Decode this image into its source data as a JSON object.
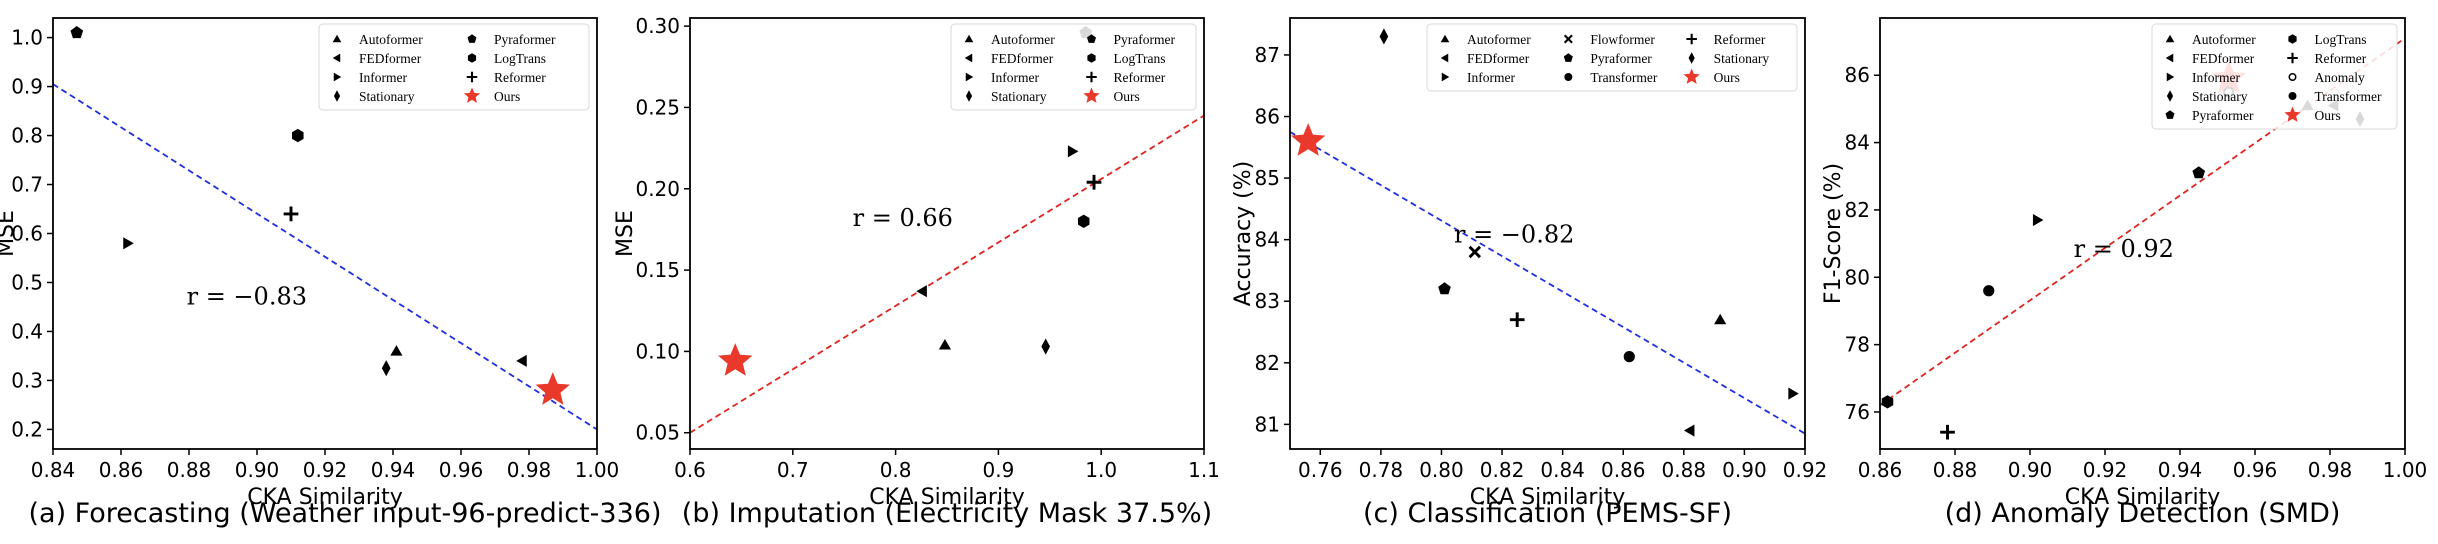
{
  "chart_data": [
    {
      "type": "scatter",
      "caption": "(a) Forecasting (Weather input-96-predict-336)",
      "xlabel": "CKA Similarity",
      "ylabel": "MSE",
      "xlim": [
        0.84,
        1.0
      ],
      "ylim": [
        0.16,
        1.04
      ],
      "xticks": [
        "0.84",
        "0.86",
        "0.88",
        "0.90",
        "0.92",
        "0.94",
        "0.96",
        "0.98",
        "1.00"
      ],
      "xtick_values": [
        0.84,
        0.86,
        0.88,
        0.9,
        0.92,
        0.94,
        0.96,
        0.98,
        1.0
      ],
      "yticks": [
        "0.2",
        "0.3",
        "0.4",
        "0.5",
        "0.6",
        "0.7",
        "0.8",
        "0.9",
        "1.0"
      ],
      "ytick_values": [
        0.2,
        0.3,
        0.4,
        0.5,
        0.6,
        0.7,
        0.8,
        0.9,
        1.0
      ],
      "legend_ncol": 2,
      "legend_width": 270,
      "legend": [
        {
          "label": "Autoformer",
          "marker": "triangle-up"
        },
        {
          "label": "FEDformer",
          "marker": "triangle-left"
        },
        {
          "label": "Informer",
          "marker": "triangle-right"
        },
        {
          "label": "Stationary",
          "marker": "diamond"
        },
        {
          "label": "Pyraformer",
          "marker": "pentagon"
        },
        {
          "label": "LogTrans",
          "marker": "hexagon"
        },
        {
          "label": "Reformer",
          "marker": "plus"
        },
        {
          "label": "Ours",
          "marker": "star"
        }
      ],
      "points": [
        {
          "model": "Pyraformer",
          "marker": "pentagon",
          "x": 0.847,
          "y": 1.01
        },
        {
          "model": "LogTrans",
          "marker": "hexagon",
          "x": 0.912,
          "y": 0.8
        },
        {
          "model": "Informer",
          "marker": "triangle-right",
          "x": 0.862,
          "y": 0.58
        },
        {
          "model": "Reformer",
          "marker": "plus",
          "x": 0.91,
          "y": 0.64
        },
        {
          "model": "Autoformer",
          "marker": "triangle-up",
          "x": 0.941,
          "y": 0.36
        },
        {
          "model": "Stationary",
          "marker": "diamond",
          "x": 0.938,
          "y": 0.325
        },
        {
          "model": "FEDformer",
          "marker": "triangle-left",
          "x": 0.978,
          "y": 0.34
        },
        {
          "model": "Ours",
          "marker": "star",
          "x": 0.987,
          "y": 0.28
        }
      ],
      "fit_line": {
        "color": "#1f2fe0",
        "x": [
          0.84,
          1.0
        ],
        "y": [
          0.905,
          0.2
        ]
      },
      "annotation": {
        "text": "r = −0.83",
        "x": 0.897,
        "y": 0.455
      }
    },
    {
      "type": "scatter",
      "caption": "(b) Imputation (Electricity Mask 37.5%)",
      "xlabel": "CKA Similarity",
      "ylabel": "MSE",
      "xlim": [
        0.6,
        1.1
      ],
      "ylim": [
        0.04,
        0.305
      ],
      "xticks": [
        "0.6",
        "0.7",
        "0.8",
        "0.9",
        "1.0",
        "1.1"
      ],
      "xtick_values": [
        0.6,
        0.7,
        0.8,
        0.9,
        1.0,
        1.1
      ],
      "yticks": [
        "0.05",
        "0.10",
        "0.15",
        "0.20",
        "0.25",
        "0.30"
      ],
      "ytick_values": [
        0.05,
        0.1,
        0.15,
        0.2,
        0.25,
        0.3
      ],
      "legend_ncol": 2,
      "legend_width": 245,
      "legend": [
        {
          "label": "Autoformer",
          "marker": "triangle-up"
        },
        {
          "label": "FEDformer",
          "marker": "triangle-left"
        },
        {
          "label": "Informer",
          "marker": "triangle-right"
        },
        {
          "label": "Stationary",
          "marker": "diamond"
        },
        {
          "label": "Pyraformer",
          "marker": "pentagon"
        },
        {
          "label": "LogTrans",
          "marker": "hexagon"
        },
        {
          "label": "Reformer",
          "marker": "plus"
        },
        {
          "label": "Ours",
          "marker": "star"
        }
      ],
      "points": [
        {
          "model": "Pyraformer",
          "marker": "pentagon",
          "x": 0.985,
          "y": 0.296
        },
        {
          "model": "Informer",
          "marker": "triangle-right",
          "x": 0.972,
          "y": 0.223
        },
        {
          "model": "Reformer",
          "marker": "plus",
          "x": 0.993,
          "y": 0.204
        },
        {
          "model": "LogTrans",
          "marker": "hexagon",
          "x": 0.983,
          "y": 0.18
        },
        {
          "model": "FEDformer",
          "marker": "triangle-left",
          "x": 0.826,
          "y": 0.137
        },
        {
          "model": "Autoformer",
          "marker": "triangle-up",
          "x": 0.848,
          "y": 0.104
        },
        {
          "model": "Stationary",
          "marker": "diamond",
          "x": 0.946,
          "y": 0.103
        },
        {
          "model": "Ours",
          "marker": "star",
          "x": 0.644,
          "y": 0.094
        }
      ],
      "fit_line": {
        "color": "#e0251f",
        "x": [
          0.6,
          1.1
        ],
        "y": [
          0.05,
          0.245
        ]
      },
      "annotation": {
        "text": "r = 0.66",
        "x": 0.807,
        "y": 0.177
      }
    },
    {
      "type": "scatter",
      "caption": "(c) Classification (PEMS-SF)",
      "xlabel": "CKA Similarity",
      "ylabel": "Accuracy (%)",
      "xlim": [
        0.75,
        0.92
      ],
      "ylim": [
        80.6,
        87.6
      ],
      "xticks": [
        "0.76",
        "0.78",
        "0.80",
        "0.82",
        "0.84",
        "0.86",
        "0.88",
        "0.90",
        "0.92"
      ],
      "xtick_values": [
        0.76,
        0.78,
        0.8,
        0.82,
        0.84,
        0.86,
        0.88,
        0.9,
        0.92
      ],
      "yticks": [
        "81",
        "82",
        "83",
        "84",
        "85",
        "86",
        "87"
      ],
      "ytick_values": [
        81,
        82,
        83,
        84,
        85,
        86,
        87
      ],
      "legend_ncol": 3,
      "legend_width": 370,
      "legend": [
        {
          "label": "Autoformer",
          "marker": "triangle-up"
        },
        {
          "label": "FEDformer",
          "marker": "triangle-left"
        },
        {
          "label": "Informer",
          "marker": "triangle-right"
        },
        {
          "label": "Flowformer",
          "marker": "cross"
        },
        {
          "label": "Pyraformer",
          "marker": "pentagon"
        },
        {
          "label": "Transformer",
          "marker": "circle"
        },
        {
          "label": "Reformer",
          "marker": "plus"
        },
        {
          "label": "Stationary",
          "marker": "diamond"
        },
        {
          "label": "Ours",
          "marker": "star"
        }
      ],
      "points": [
        {
          "model": "Stationary",
          "marker": "diamond",
          "x": 0.781,
          "y": 87.3
        },
        {
          "model": "Ours",
          "marker": "star",
          "x": 0.756,
          "y": 85.6
        },
        {
          "model": "Flowformer",
          "marker": "cross",
          "x": 0.811,
          "y": 83.8
        },
        {
          "model": "Pyraformer",
          "marker": "pentagon",
          "x": 0.801,
          "y": 83.2
        },
        {
          "model": "Reformer",
          "marker": "plus",
          "x": 0.825,
          "y": 82.7
        },
        {
          "model": "Transformer",
          "marker": "circle",
          "x": 0.862,
          "y": 82.1
        },
        {
          "model": "Autoformer",
          "marker": "triangle-up",
          "x": 0.892,
          "y": 82.7
        },
        {
          "model": "FEDformer",
          "marker": "triangle-left",
          "x": 0.882,
          "y": 80.9
        },
        {
          "model": "Informer",
          "marker": "triangle-right",
          "x": 0.916,
          "y": 81.5
        }
      ],
      "fit_line": {
        "color": "#1f2fe0",
        "x": [
          0.75,
          0.92
        ],
        "y": [
          85.75,
          80.85
        ]
      },
      "annotation": {
        "text": "r = −0.82",
        "x": 0.824,
        "y": 83.95
      }
    },
    {
      "type": "scatter",
      "caption": "(d) Anomaly Detection (SMD)",
      "xlabel": "CKA Similarity",
      "ylabel": "F1-Score (%)",
      "xlim": [
        0.86,
        1.0
      ],
      "ylim": [
        74.9,
        87.7
      ],
      "xticks": [
        "0.86",
        "0.88",
        "0.90",
        "0.92",
        "0.94",
        "0.96",
        "0.98",
        "1.00"
      ],
      "xtick_values": [
        0.86,
        0.88,
        0.9,
        0.92,
        0.94,
        0.96,
        0.98,
        1.0
      ],
      "yticks": [
        "76",
        "78",
        "80",
        "82",
        "84",
        "86"
      ],
      "ytick_values": [
        76,
        78,
        80,
        82,
        84,
        86
      ],
      "legend_ncol": 2,
      "legend_width": 245,
      "legend": [
        {
          "label": "Autoformer",
          "marker": "triangle-up"
        },
        {
          "label": "FEDformer",
          "marker": "triangle-left"
        },
        {
          "label": "Informer",
          "marker": "triangle-right"
        },
        {
          "label": "Stationary",
          "marker": "diamond"
        },
        {
          "label": "Pyraformer",
          "marker": "pentagon"
        },
        {
          "label": "LogTrans",
          "marker": "hexagon"
        },
        {
          "label": "Reformer",
          "marker": "plus"
        },
        {
          "label": "Anomaly",
          "marker": "circle-open"
        },
        {
          "label": "Transformer",
          "marker": "circle"
        },
        {
          "label": "Ours",
          "marker": "star"
        }
      ],
      "points": [
        {
          "model": "Ours",
          "marker": "star",
          "x": 0.953,
          "y": 85.9
        },
        {
          "model": "Anomaly",
          "marker": "circle-open",
          "x": 0.953,
          "y": 85.5
        },
        {
          "model": "Autoformer",
          "marker": "triangle-up",
          "x": 0.974,
          "y": 85.1
        },
        {
          "model": "FEDformer",
          "marker": "triangle-left",
          "x": 0.981,
          "y": 85.1
        },
        {
          "model": "Stationary",
          "marker": "diamond",
          "x": 0.988,
          "y": 84.7
        },
        {
          "model": "Pyraformer",
          "marker": "pentagon",
          "x": 0.945,
          "y": 83.1
        },
        {
          "model": "Informer",
          "marker": "triangle-right",
          "x": 0.902,
          "y": 81.7
        },
        {
          "model": "Transformer",
          "marker": "circle",
          "x": 0.889,
          "y": 79.6
        },
        {
          "model": "LogTrans",
          "marker": "hexagon",
          "x": 0.862,
          "y": 76.3
        },
        {
          "model": "Reformer",
          "marker": "plus",
          "x": 0.878,
          "y": 75.4
        }
      ],
      "fit_line": {
        "color": "#e0251f",
        "x": [
          0.86,
          1.0
        ],
        "y": [
          76.2,
          87.1
        ]
      },
      "annotation": {
        "text": "r = 0.92",
        "x": 0.925,
        "y": 80.6
      }
    }
  ]
}
